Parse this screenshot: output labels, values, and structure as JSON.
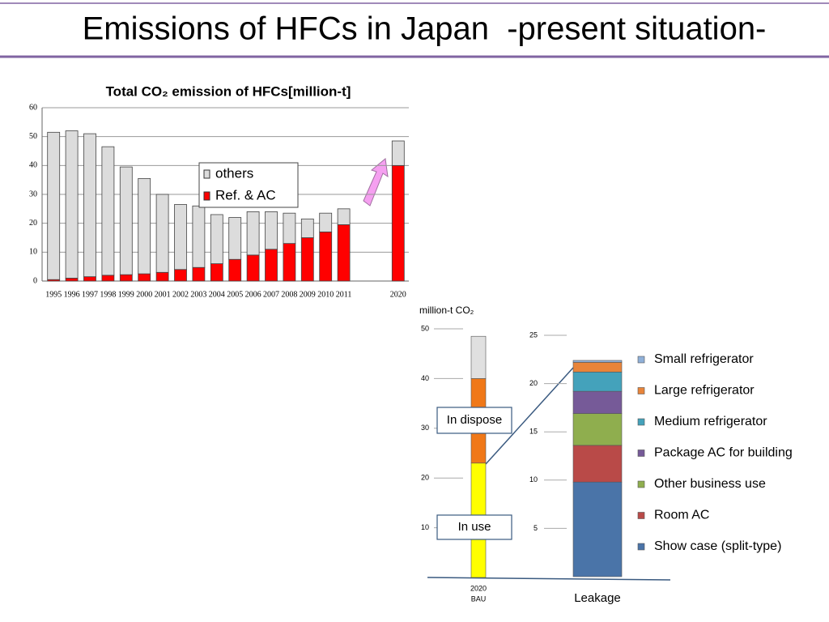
{
  "page_title": "Emissions of HFCs in Japan  -present situation-",
  "chart_data": [
    {
      "type": "stacked-bar",
      "title": "Total CO₂ emission of HFCs[million-t]",
      "categories": [
        "1995",
        "1996",
        "1997",
        "1998",
        "1999",
        "2000",
        "2001",
        "2002",
        "2003",
        "2004",
        "2005",
        "2006",
        "2007",
        "2008",
        "2009",
        "2010",
        "2011",
        null,
        null,
        "2020"
      ],
      "series": [
        {
          "name": "Ref. & AC",
          "color": "#ff0000",
          "values": [
            0.5,
            1,
            1.5,
            2,
            2.2,
            2.5,
            3,
            4,
            4.7,
            6,
            7.5,
            9,
            11,
            13,
            15,
            17,
            19.5,
            null,
            null,
            40
          ]
        },
        {
          "name": "others",
          "color": "#dcdcdc",
          "values": [
            51,
            51,
            49.5,
            44.5,
            37.3,
            33,
            27,
            22.5,
            21.3,
            17,
            14.5,
            15,
            13,
            10.5,
            6.5,
            6.5,
            5.5,
            null,
            null,
            8.5
          ]
        }
      ],
      "ylim": [
        0,
        60
      ],
      "yticks": [
        0,
        10,
        20,
        30,
        40,
        50,
        60
      ],
      "grid": true,
      "legend": "inside"
    },
    {
      "type": "stacked-bar",
      "ylabel": "million-t CO₂",
      "categories": [
        "2020"
      ],
      "category_sublabels": [
        "BAU"
      ],
      "series": [
        {
          "name": "In use",
          "color": "#ffff00",
          "values": [
            23
          ]
        },
        {
          "name": "In dispose",
          "color": "#f07818",
          "values": [
            17
          ]
        },
        {
          "color": "#e0e0e0",
          "values": [
            8.5
          ]
        }
      ],
      "ylim": [
        0,
        50
      ],
      "yticks": [
        10,
        20,
        30,
        40,
        50
      ],
      "grid": false,
      "legend": "annotations"
    },
    {
      "type": "stacked-bar",
      "categories": [
        "Leakage"
      ],
      "series": [
        {
          "name": "Show case (split-type)",
          "color": "#4a74a8",
          "values": [
            9.8
          ]
        },
        {
          "name": "Room AC",
          "color": "#b94a48",
          "values": [
            3.8
          ]
        },
        {
          "name": "Other business use",
          "color": "#8fae4e",
          "values": [
            3.3
          ]
        },
        {
          "name": "Package AC for building",
          "color": "#765a98",
          "values": [
            2.3
          ]
        },
        {
          "name": "Medium refrigerator",
          "color": "#44a2bb",
          "values": [
            2.0
          ]
        },
        {
          "name": "Large refrigerator",
          "color": "#e8843a",
          "values": [
            1.0
          ]
        },
        {
          "name": "Small refrigerator",
          "color": "#8fb0d8",
          "values": [
            0.2
          ]
        }
      ],
      "ylim": [
        0,
        25
      ],
      "yticks": [
        5,
        10,
        15,
        20,
        25
      ],
      "grid": false,
      "legend": "right"
    }
  ]
}
